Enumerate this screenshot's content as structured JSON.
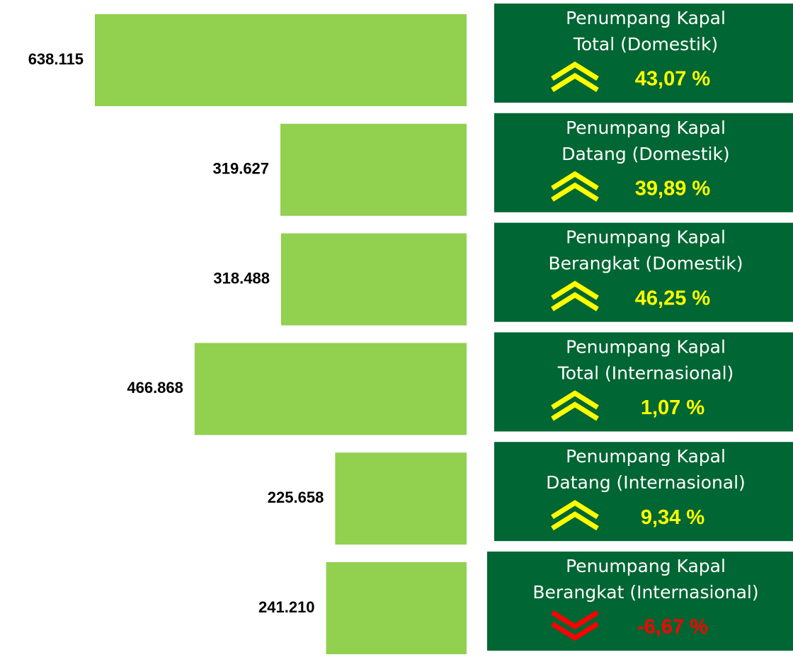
{
  "chart_data": {
    "type": "bar",
    "orientation": "horizontal",
    "categories": [
      [
        "Penumpang Kapal",
        "Total (Domestik)"
      ],
      [
        "Penumpang Kapal",
        "Datang (Domestik)"
      ],
      [
        "Penumpang Kapal",
        "Berangkat (Domestik)"
      ],
      [
        "Penumpang Kapal",
        "Total (Internasional)"
      ],
      [
        "Penumpang Kapal",
        "Datang (Internasional)"
      ],
      [
        "Penumpang Kapal",
        "Berangkat (Internasional)"
      ]
    ],
    "values": [
      638115,
      319627,
      318488,
      466868,
      225658,
      241210
    ],
    "value_labels": [
      "638.115",
      "319.627",
      "318.488",
      "466.868",
      "225.658",
      "241.210"
    ],
    "color": "#92d050",
    "changes": [
      43.07,
      39.89,
      46.25,
      1.07,
      9.34,
      -6.67
    ],
    "change_labels": [
      "43,07 %",
      "39,89 %",
      "46,25 %",
      "1,07 %",
      "9,34 %",
      "-6,67 %"
    ],
    "panel_color": "#006633",
    "up_color": "#ffff00",
    "down_color": "#ff0000"
  }
}
